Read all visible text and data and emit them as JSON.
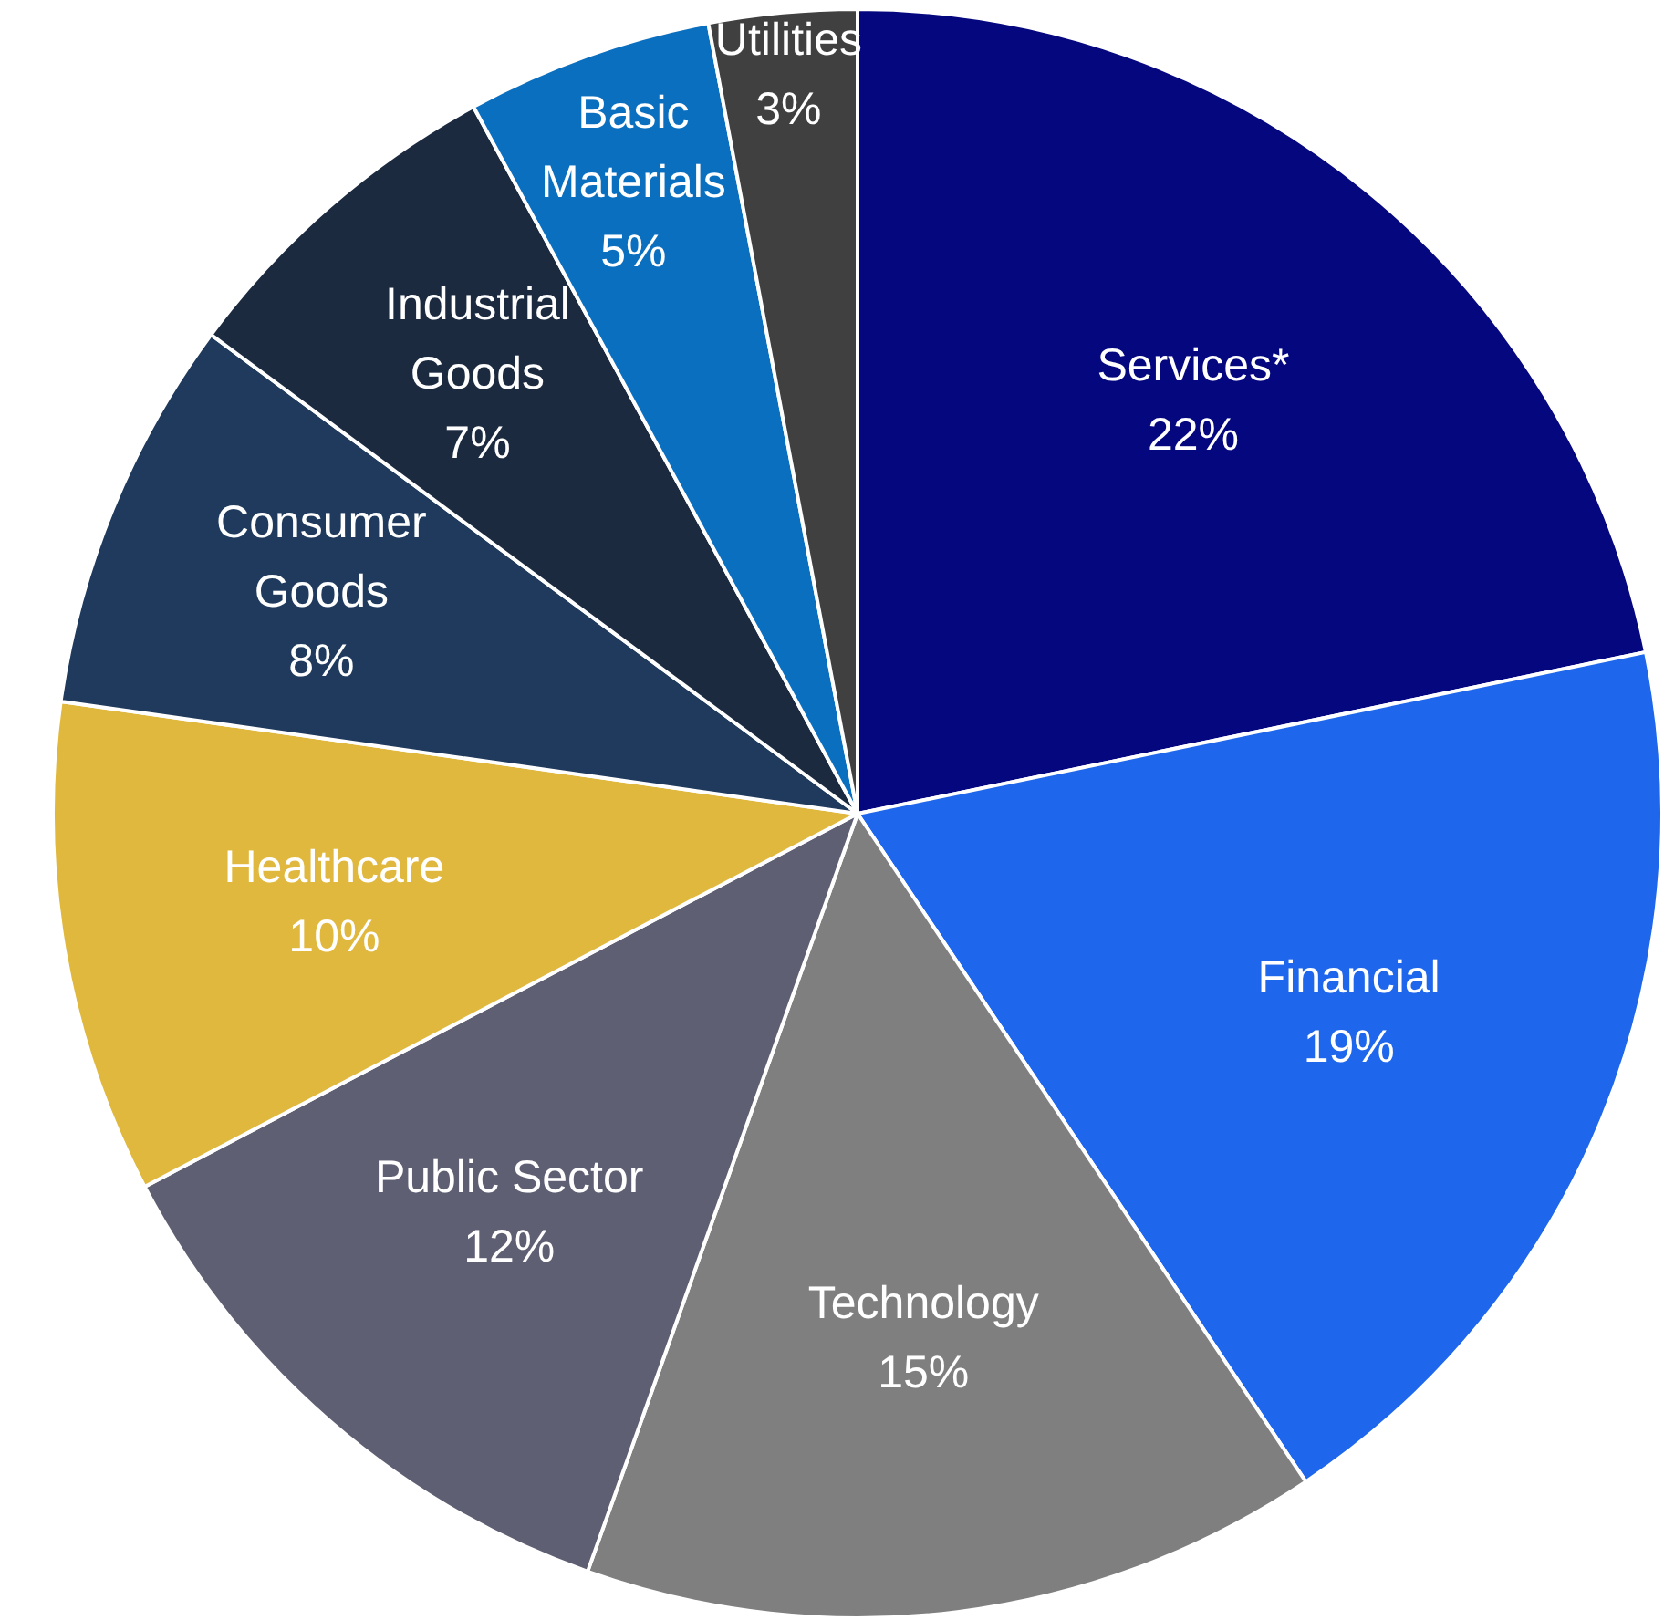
{
  "chart_data": {
    "type": "pie",
    "categories": [
      "Services*",
      "Financial",
      "Technology",
      "Public Sector",
      "Healthcare",
      "Consumer Goods",
      "Industrial Goods",
      "Basic Materials",
      "Utilities"
    ],
    "values": [
      22,
      19,
      15,
      12,
      10,
      8,
      7,
      5,
      3
    ],
    "value_labels": [
      "22%",
      "19%",
      "15%",
      "12%",
      "10%",
      "8%",
      "7%",
      "5%",
      "3%"
    ],
    "colors": [
      "#05077e",
      "#1e67ec",
      "#7f7f7f",
      "#5f5f74",
      "#e0b83e",
      "#1f3a5c",
      "#1c2a40",
      "#0b6fc0",
      "#404040"
    ],
    "legend": false
  }
}
